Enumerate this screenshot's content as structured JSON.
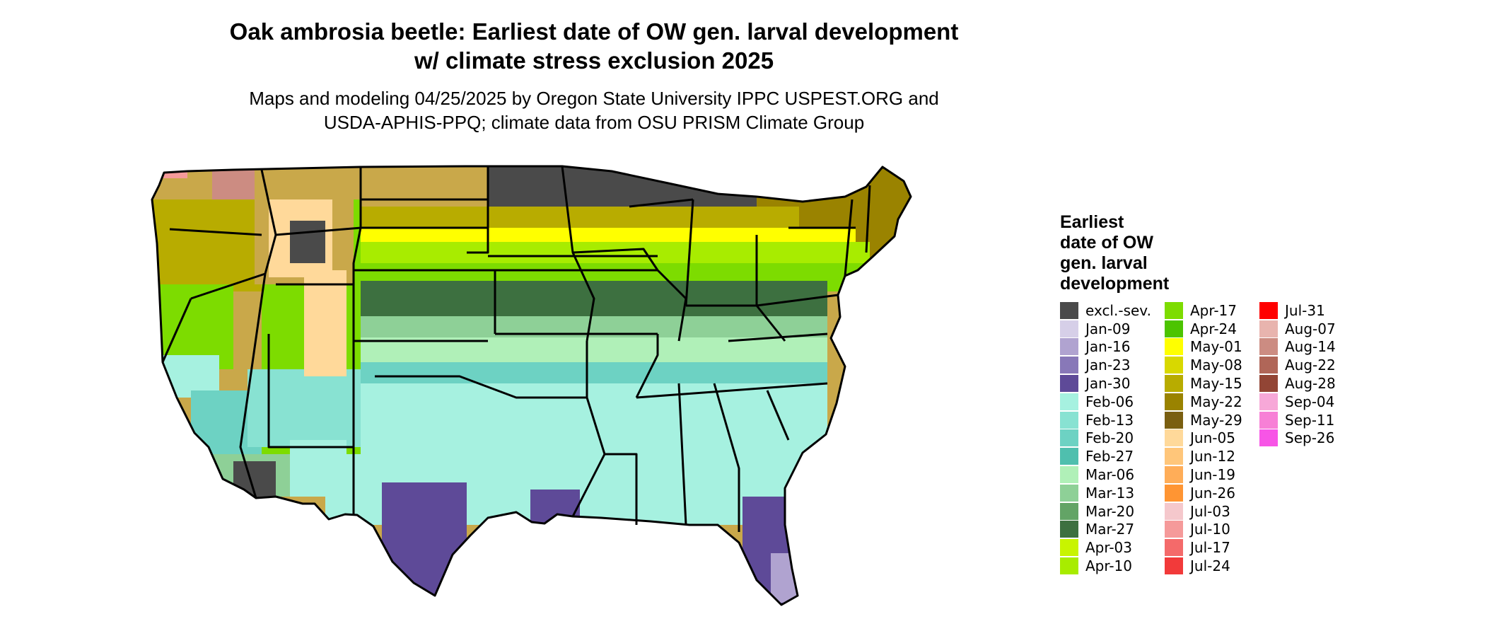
{
  "header": {
    "title_line1": "Oak ambrosia beetle: Earliest date of OW gen. larval development",
    "title_line2": "w/ climate stress exclusion 2025",
    "subtitle_line1": "Maps and modeling 04/25/2025 by Oregon State University IPPC USPEST.ORG and",
    "subtitle_line2": "USDA-APHIS-PPQ; climate data from OSU PRISM Climate Group"
  },
  "legend": {
    "title_lines": [
      "Earliest",
      "date of OW",
      "gen. larval",
      "development"
    ],
    "columns": [
      [
        {
          "label": "excl.-sev.",
          "color": "#4a4a4a"
        },
        {
          "label": "Jan-09",
          "color": "#d6cfe8"
        },
        {
          "label": "Jan-16",
          "color": "#b0a3d0"
        },
        {
          "label": "Jan-23",
          "color": "#8878b8"
        },
        {
          "label": "Jan-30",
          "color": "#5e4a98"
        },
        {
          "label": "Feb-06",
          "color": "#a6f1e0"
        },
        {
          "label": "Feb-13",
          "color": "#88e2d2"
        },
        {
          "label": "Feb-20",
          "color": "#6dd2c3"
        },
        {
          "label": "Feb-27",
          "color": "#4fbfae"
        },
        {
          "label": "Mar-06",
          "color": "#b0f0b8"
        },
        {
          "label": "Mar-13",
          "color": "#8ed097"
        },
        {
          "label": "Mar-20",
          "color": "#63a466"
        },
        {
          "label": "Mar-27",
          "color": "#3d7040"
        },
        {
          "label": "Apr-03",
          "color": "#c8f400"
        },
        {
          "label": "Apr-10",
          "color": "#a8ec00"
        }
      ],
      [
        {
          "label": "Apr-17",
          "color": "#7ddc00"
        },
        {
          "label": "Apr-24",
          "color": "#4cc400"
        },
        {
          "label": "May-01",
          "color": "#ffff00"
        },
        {
          "label": "May-08",
          "color": "#d8d800"
        },
        {
          "label": "May-15",
          "color": "#b8ac00"
        },
        {
          "label": "May-22",
          "color": "#9a8300"
        },
        {
          "label": "May-29",
          "color": "#7a5f10"
        },
        {
          "label": "Jun-05",
          "color": "#ffd99a"
        },
        {
          "label": "Jun-12",
          "color": "#ffc67a"
        },
        {
          "label": "Jun-19",
          "color": "#ffad58"
        },
        {
          "label": "Jun-26",
          "color": "#ff9533"
        },
        {
          "label": "Jul-03",
          "color": "#f5c8cc"
        },
        {
          "label": "Jul-10",
          "color": "#f59a9a"
        },
        {
          "label": "Jul-17",
          "color": "#f46a6a"
        },
        {
          "label": "Jul-24",
          "color": "#f23a3a"
        }
      ],
      [
        {
          "label": "Jul-31",
          "color": "#ff0000"
        },
        {
          "label": "Aug-07",
          "color": "#e8b4ae"
        },
        {
          "label": "Aug-14",
          "color": "#cc8c82"
        },
        {
          "label": "Aug-22",
          "color": "#b06658"
        },
        {
          "label": "Aug-28",
          "color": "#924535"
        },
        {
          "label": "Sep-04",
          "color": "#f7a8d8"
        },
        {
          "label": "Sep-11",
          "color": "#f780d6"
        },
        {
          "label": "Sep-26",
          "color": "#f755e6"
        }
      ]
    ]
  }
}
